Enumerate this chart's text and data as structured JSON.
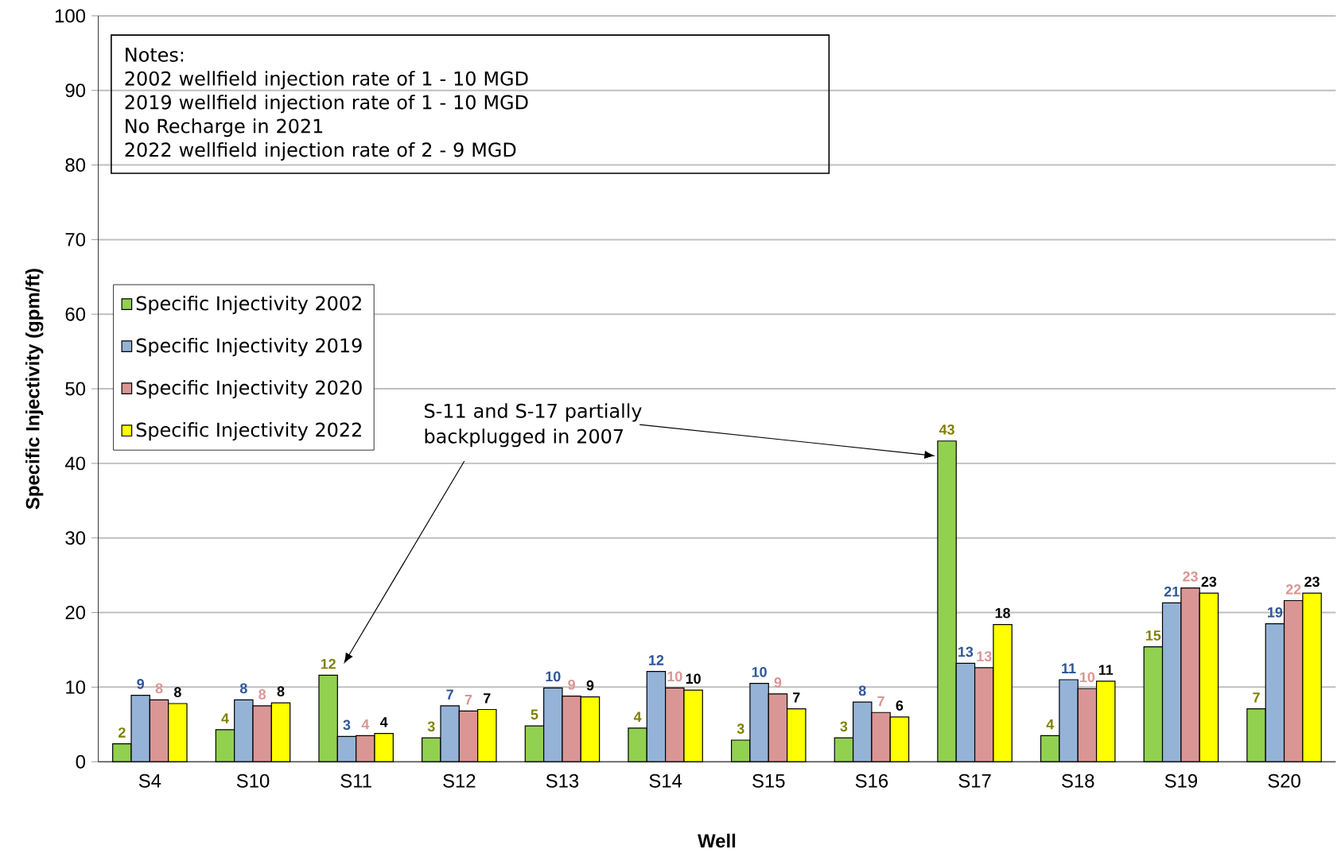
{
  "chart_data": {
    "type": "bar",
    "xlabel": "Well",
    "ylabel": "Specific Injectivity (gpm/ft)",
    "categories": [
      "S4",
      "S10",
      "S11",
      "S12",
      "S13",
      "S14",
      "S15",
      "S16",
      "S17",
      "S18",
      "S19",
      "S20"
    ],
    "series": [
      {
        "name": "Specific Injectivity 2002",
        "color": "#92d050",
        "values": [
          2.4,
          4.3,
          11.6,
          3.2,
          4.8,
          4.5,
          2.9,
          3.2,
          43.0,
          3.5,
          15.4,
          7.1
        ],
        "value_labels": [
          "2",
          "4",
          "12",
          "3",
          "5",
          "4",
          "3",
          "3",
          "43",
          "4",
          "15",
          "7"
        ]
      },
      {
        "name": "Specific Injectivity 2019",
        "color": "#95b3d7",
        "values": [
          8.9,
          8.3,
          3.4,
          7.5,
          9.9,
          12.1,
          10.5,
          8.0,
          13.2,
          11.0,
          21.3,
          18.5
        ],
        "value_labels": [
          "9",
          "8",
          "3",
          "7",
          "10",
          "12",
          "10",
          "8",
          "13",
          "11",
          "21",
          "19"
        ]
      },
      {
        "name": "Specific Injectivity 2020",
        "color": "#d99694",
        "values": [
          8.3,
          7.5,
          3.5,
          6.8,
          8.8,
          9.9,
          9.1,
          6.6,
          12.6,
          9.8,
          23.3,
          21.6
        ],
        "value_labels": [
          "8",
          "8",
          "4",
          "7",
          "9",
          "10",
          "9",
          "7",
          "13",
          "10",
          "23",
          "22"
        ]
      },
      {
        "name": "Specific Injectivity 2022",
        "color": "#ffff00",
        "values": [
          7.8,
          7.9,
          3.8,
          7.0,
          8.7,
          9.6,
          7.1,
          6.0,
          18.4,
          10.8,
          22.6,
          22.6
        ],
        "value_labels": [
          "8",
          "8",
          "4",
          "7",
          "9",
          "10",
          "7",
          "6",
          "18",
          "11",
          "23",
          "23"
        ]
      }
    ],
    "ylim": [
      0,
      100
    ],
    "yticks": [
      0,
      10,
      20,
      30,
      40,
      50,
      60,
      70,
      80,
      90,
      100
    ],
    "grid": "y",
    "legend": "left",
    "annotations": [
      "Notes:",
      "2002 wellfield injection rate of 1 - 10 MGD",
      "2019 wellfield injection rate of 1 - 10 MGD",
      "No Recharge in 2021",
      "2022 wellfield injection rate of 2 - 9 MGD",
      "S-11 and S-17 partially backplugged in 2007"
    ]
  }
}
